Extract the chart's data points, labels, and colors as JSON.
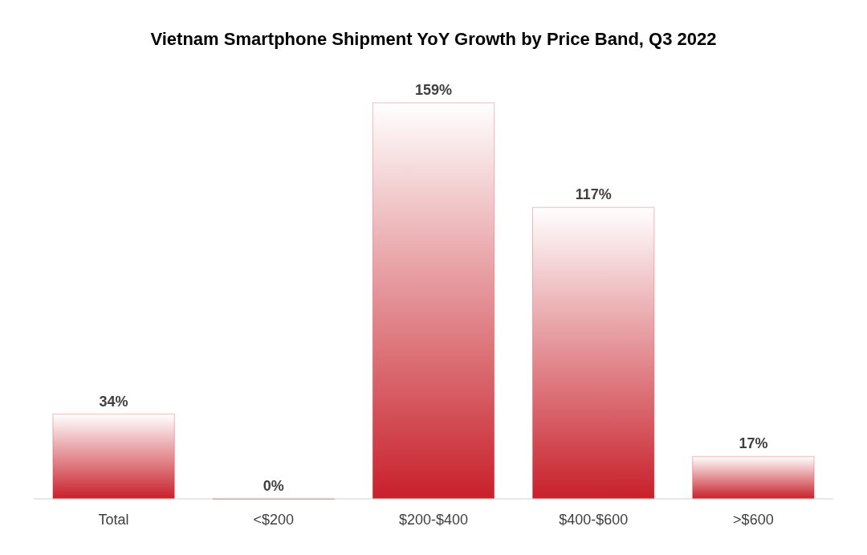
{
  "chart_data": {
    "type": "bar",
    "title": "Vietnam Smartphone Shipment YoY Growth by Price Band, Q3 2022",
    "categories": [
      "Total",
      "<$200",
      "$200-$400",
      "$400-$600",
      ">$600"
    ],
    "values": [
      34,
      0,
      159,
      117,
      17
    ],
    "value_labels": [
      "34%",
      "0%",
      "159%",
      "117%",
      "17%"
    ],
    "color": "#c8202a"
  }
}
